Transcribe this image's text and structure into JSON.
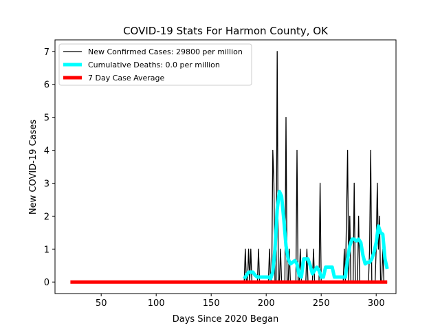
{
  "chart_data": {
    "type": "line",
    "title": "COVID-19 Stats For Harmon County, OK",
    "xlabel": "Days Since 2020 Began",
    "ylabel": "New COVID-19 Cases",
    "xlim": [
      8,
      318
    ],
    "ylim": [
      -0.35,
      7.35
    ],
    "xticks": [
      50,
      100,
      150,
      200,
      250,
      300
    ],
    "yticks": [
      0,
      1,
      2,
      3,
      4,
      5,
      6,
      7
    ],
    "grid": false,
    "legend_position": "top-left",
    "series": [
      {
        "name": "New Confirmed Cases: 29800 per million",
        "color": "#000000",
        "x": [
          180,
          181,
          182,
          183,
          184,
          185,
          186,
          187,
          188,
          189,
          190,
          191,
          192,
          193,
          194,
          195,
          196,
          197,
          198,
          199,
          200,
          201,
          202,
          203,
          204,
          205,
          206,
          207,
          208,
          209,
          210,
          211,
          212,
          213,
          214,
          215,
          216,
          217,
          218,
          219,
          220,
          221,
          222,
          223,
          224,
          225,
          226,
          227,
          228,
          229,
          230,
          231,
          232,
          233,
          234,
          235,
          236,
          237,
          238,
          239,
          240,
          241,
          242,
          243,
          244,
          245,
          246,
          247,
          248,
          249,
          250,
          251,
          252,
          253,
          254,
          255,
          256,
          257,
          258,
          259,
          260,
          261,
          262,
          263,
          264,
          265,
          266,
          267,
          268,
          269,
          270,
          271,
          272,
          273,
          274,
          275,
          276,
          277,
          278,
          279,
          280,
          281,
          282,
          283,
          284,
          285,
          286,
          287,
          288,
          289,
          290,
          291,
          292,
          293,
          294,
          295,
          296,
          297,
          298,
          299,
          300,
          301,
          302,
          303,
          304,
          305,
          306,
          307,
          308,
          309,
          310
        ],
        "y": [
          0,
          1,
          0,
          0,
          1,
          0,
          1,
          0,
          0,
          0,
          0,
          0,
          0,
          1,
          0,
          0,
          0,
          0,
          0,
          0,
          0,
          0,
          0,
          1,
          0,
          0,
          4,
          3,
          0,
          0,
          7,
          0,
          0,
          1,
          0,
          0,
          0,
          0,
          5,
          0,
          0,
          1,
          0,
          0,
          0,
          0,
          0,
          0,
          4,
          0,
          0,
          1,
          0,
          0,
          0,
          0,
          0,
          1,
          0,
          0,
          0,
          0,
          0,
          1,
          0,
          0,
          0,
          0,
          0,
          3,
          0,
          0,
          0,
          0,
          0,
          0,
          0,
          0,
          0,
          0,
          0,
          0,
          0,
          0,
          0,
          0,
          0,
          0,
          0,
          0,
          0,
          1,
          0,
          2,
          4,
          0,
          2,
          0,
          0,
          0,
          3,
          0,
          0,
          0,
          2,
          0,
          0,
          0,
          0,
          0,
          0,
          0,
          0,
          0,
          1,
          4,
          0,
          0,
          0,
          0,
          1,
          3,
          1,
          2,
          0,
          0,
          1,
          0,
          0,
          0,
          0
        ]
      },
      {
        "name": "Cumulative Deaths: 0.0 per million",
        "color": "#00ffff",
        "x": [
          180,
          182,
          184,
          186,
          188,
          190,
          192,
          194,
          196,
          198,
          200,
          202,
          204,
          206,
          208,
          210,
          212,
          214,
          216,
          218,
          220,
          222,
          224,
          226,
          228,
          230,
          232,
          234,
          236,
          238,
          240,
          242,
          244,
          246,
          248,
          250,
          252,
          254,
          256,
          258,
          260,
          262,
          272,
          274,
          276,
          278,
          280,
          282,
          284,
          286,
          288,
          290,
          292,
          294,
          296,
          298,
          300,
          302,
          304,
          306,
          308,
          310
        ],
        "y": [
          0.1,
          0.2,
          0.3,
          0.3,
          0.3,
          0.2,
          0.15,
          0.15,
          0.15,
          0.15,
          0.15,
          0.15,
          0.1,
          0.3,
          1.0,
          2.2,
          2.75,
          2.6,
          1.9,
          1.1,
          0.7,
          0.55,
          0.6,
          0.65,
          0.55,
          0.2,
          0.15,
          0.7,
          0.7,
          0.7,
          0.5,
          0.25,
          0.35,
          0.45,
          0.35,
          0.15,
          0.15,
          0.45,
          0.45,
          0.45,
          0.45,
          0.15,
          0.15,
          0.7,
          1.1,
          1.3,
          1.3,
          1.25,
          1.3,
          1.2,
          0.8,
          0.55,
          0.6,
          0.6,
          0.7,
          0.9,
          1.2,
          1.7,
          1.5,
          1.45,
          0.7,
          0.4
        ]
      },
      {
        "name": "7 Day Case Average",
        "color": "#ff0000",
        "x": [
          22,
          310
        ],
        "y": [
          0,
          0
        ]
      }
    ]
  }
}
